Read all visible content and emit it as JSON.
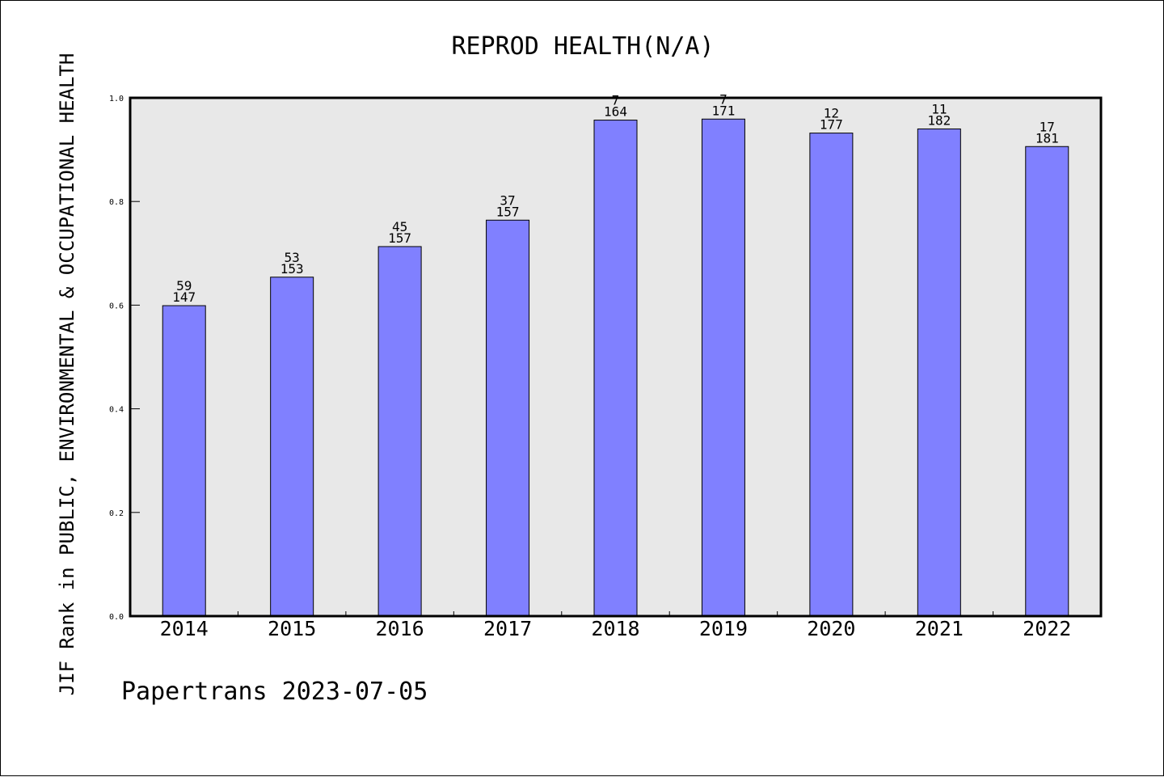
{
  "chart_data": {
    "type": "bar",
    "title": "REPROD HEALTH(N/A)",
    "ylabel": "JIF Rank in PUBLIC, ENVIRONMENTAL & OCCUPATIONAL HEALTH",
    "xlabel": "",
    "footer": "Papertrans 2023-07-05",
    "categories": [
      "2014",
      "2015",
      "2016",
      "2017",
      "2018",
      "2019",
      "2020",
      "2021",
      "2022"
    ],
    "values": [
      0.599,
      0.654,
      0.713,
      0.764,
      0.957,
      0.959,
      0.932,
      0.94,
      0.906
    ],
    "rank": [
      "59",
      "53",
      "45",
      "37",
      "7",
      "7",
      "12",
      "11",
      "17"
    ],
    "total": [
      "147",
      "153",
      "157",
      "157",
      "164",
      "171",
      "177",
      "182",
      "181"
    ],
    "ylim": [
      0,
      1.0
    ],
    "yticks": [
      "0.0",
      "0.2",
      "0.4",
      "0.6",
      "0.8",
      "1.0"
    ],
    "grid": false,
    "colors": {
      "bar": "#8080ff",
      "plot_bg": "#e8e8e8"
    }
  }
}
